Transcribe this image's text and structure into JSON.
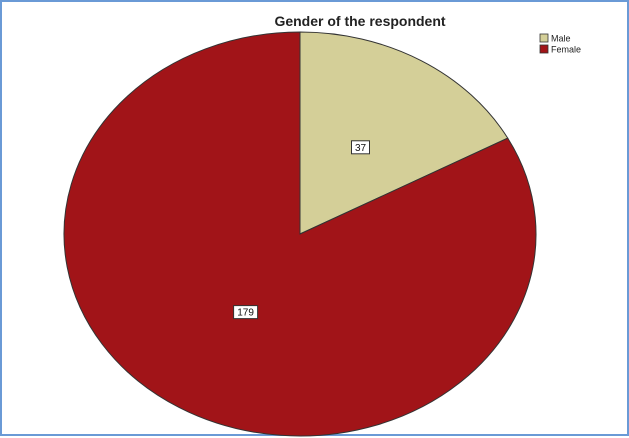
{
  "chart_data": {
    "type": "pie",
    "title": "Gender of the respondent",
    "categories": [
      "Male",
      "Female"
    ],
    "values": [
      37,
      179
    ],
    "colors": [
      "#d4cf98",
      "#a11418"
    ],
    "start_angle_deg": 0,
    "direction": "clockwise",
    "legend": "top-right",
    "data_labels": [
      "37",
      "179"
    ]
  }
}
